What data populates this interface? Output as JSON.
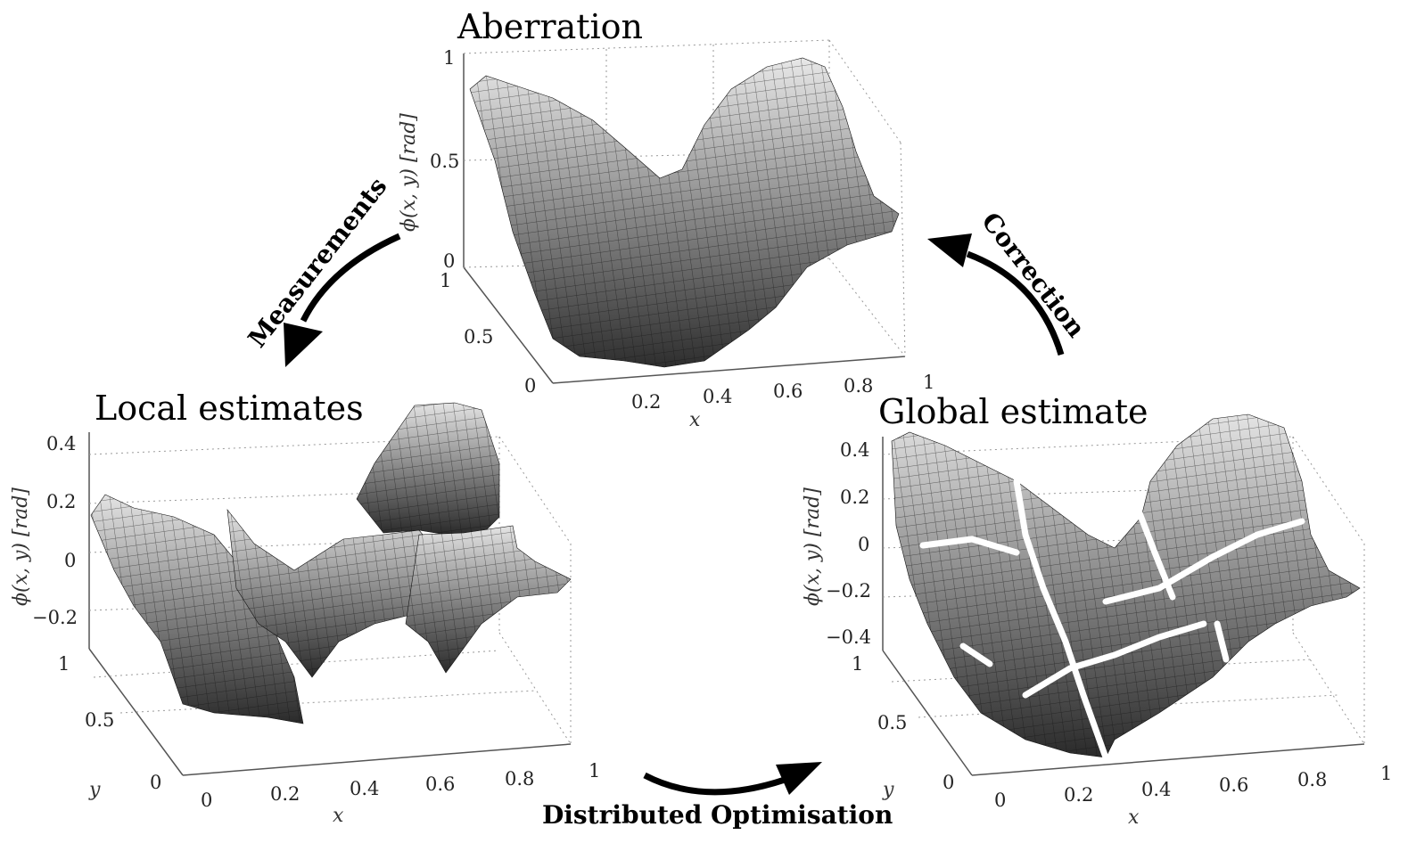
{
  "panels": {
    "aberration": {
      "title": "Aberration",
      "z_label": "ϕ(x, y) [rad]",
      "x_label": "x",
      "z_ticks": [
        "1",
        "0.5",
        "0"
      ],
      "y_ticks": [
        "1",
        "0.5",
        "0"
      ],
      "x_ticks": [
        "0.2",
        "0.4",
        "0.6",
        "0.8",
        "1"
      ]
    },
    "local": {
      "title": "Local estimates",
      "z_label": "ϕ(x, y) [rad]",
      "x_label": "x",
      "y_label": "y",
      "z_ticks": [
        "0.4",
        "0.2",
        "0",
        "−0.2"
      ],
      "y_ticks": [
        "1",
        "0.5",
        "0"
      ],
      "x_ticks": [
        "0",
        "0.2",
        "0.4",
        "0.6",
        "0.8",
        "1"
      ]
    },
    "global": {
      "title": "Global estimate",
      "z_label": "ϕ(x, y) [rad]",
      "x_label": "x",
      "y_label": "y",
      "z_ticks": [
        "0.4",
        "0.2",
        "0",
        "−0.2",
        "−0.4"
      ],
      "y_ticks": [
        "1",
        "0.5",
        "0"
      ],
      "x_ticks": [
        "0",
        "0.2",
        "0.4",
        "0.6",
        "0.8",
        "1"
      ]
    }
  },
  "arrows": {
    "measurements": "Measurements",
    "correction": "Correction",
    "distributed": "Distributed Optimisation"
  }
}
